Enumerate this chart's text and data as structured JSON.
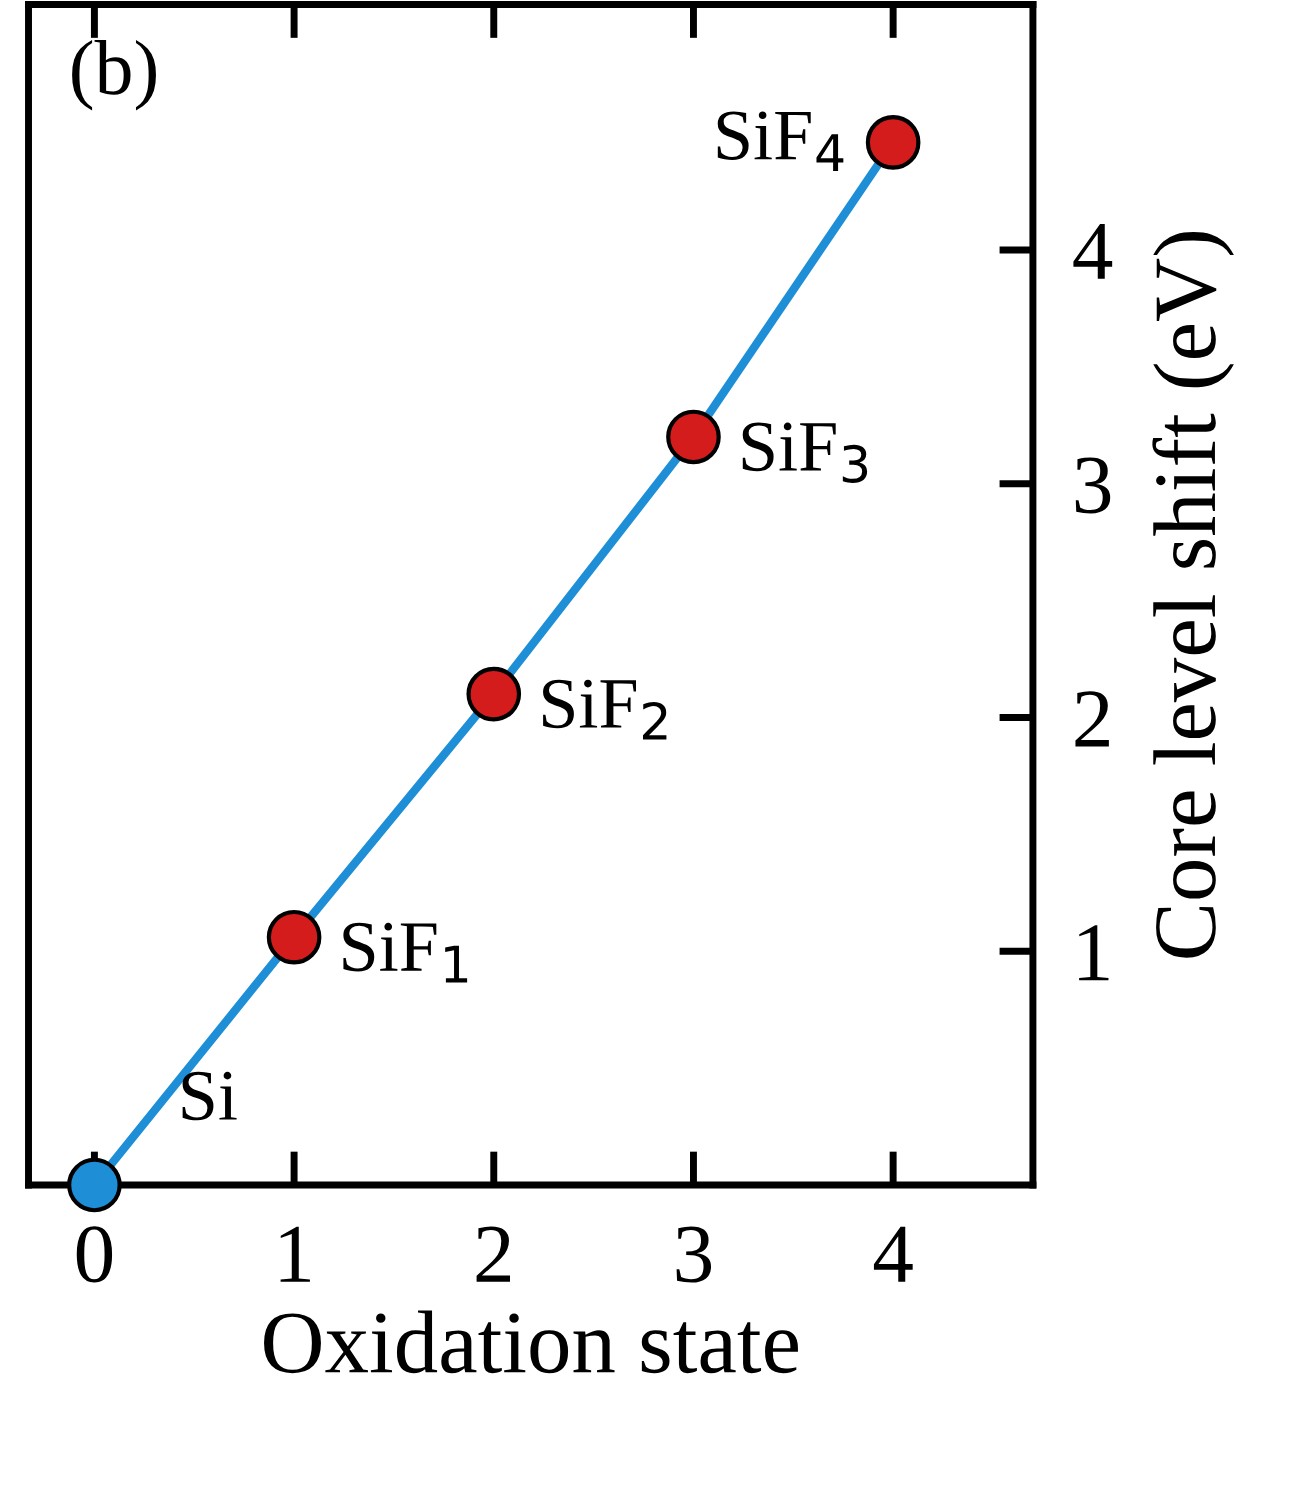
{
  "chart_data": {
    "type": "line",
    "xlabel": "Oxidation state",
    "ylabel": "Core level shift (eV)",
    "x": [
      0,
      1,
      2,
      3,
      4
    ],
    "series": [
      {
        "color": "#1e8fd6",
        "colors": [
          "#1e8fd6",
          "#d41c1c",
          "#d41c1c",
          "#d41c1c",
          "#d41c1c"
        ],
        "values": [
          0,
          1.06,
          2.1,
          3.2,
          4.46
        ]
      }
    ],
    "xlim": [
      -0.33,
      4.7
    ],
    "ylim": [
      0,
      5.05
    ],
    "xticks": [
      0,
      1,
      2,
      3,
      4
    ],
    "yticks": [
      1,
      2,
      3,
      4
    ],
    "marker": "circle",
    "line_style": "solid",
    "grid": false,
    "legend": false,
    "annotations": [
      "(b)",
      {
        "text": "Si",
        "x": 0,
        "y": 0
      },
      {
        "text": "SiF$_{1}$",
        "x": 1,
        "y": 1.06
      },
      {
        "text": "SiF$_{2}$",
        "x": 2,
        "y": 2.1
      },
      {
        "text": "SiF$_{3}$",
        "x": 3,
        "y": 3.2
      },
      {
        "text": "SiF$_{4}$",
        "x": 4,
        "y": 4.46
      }
    ]
  }
}
